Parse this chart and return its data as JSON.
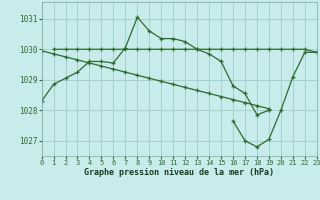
{
  "bg_color": "#c8ecec",
  "grid_color": "#a0cccc",
  "line_color": "#2d6b2d",
  "xlabel": "Graphe pression niveau de la mer (hPa)",
  "xlim": [
    0,
    23
  ],
  "ylim": [
    1026.5,
    1031.55
  ],
  "yticks": [
    1027,
    1028,
    1029,
    1030,
    1031
  ],
  "xticks": [
    0,
    1,
    2,
    3,
    4,
    5,
    6,
    7,
    8,
    9,
    10,
    11,
    12,
    13,
    14,
    15,
    16,
    17,
    18,
    19,
    20,
    21,
    22,
    23
  ],
  "series": [
    {
      "x": [
        0,
        1,
        2,
        3,
        4,
        5,
        6,
        7,
        8,
        9,
        10,
        11,
        12,
        13,
        14,
        15,
        16,
        17,
        18,
        19
      ],
      "y": [
        1028.3,
        1028.85,
        1029.05,
        1029.25,
        1029.6,
        1029.6,
        1029.55,
        1030.05,
        1031.05,
        1030.6,
        1030.35,
        1030.35,
        1030.25,
        1030.0,
        1029.85,
        1029.6,
        1028.8,
        1028.55,
        1027.85,
        1028.0
      ]
    },
    {
      "x": [
        1,
        2,
        3,
        4,
        5,
        6,
        7,
        8,
        9,
        10,
        11,
        12,
        13,
        14,
        15,
        16,
        17,
        18,
        19,
        20,
        21,
        22,
        23
      ],
      "y": [
        1030.0,
        1030.0,
        1030.0,
        1030.0,
        1030.0,
        1030.0,
        1030.0,
        1030.0,
        1030.0,
        1030.0,
        1030.0,
        1030.0,
        1030.0,
        1030.0,
        1030.0,
        1030.0,
        1030.0,
        1030.0,
        1030.0,
        1030.0,
        1030.0,
        1030.0,
        1029.9
      ]
    },
    {
      "x": [
        0,
        1,
        2,
        3,
        4,
        5,
        6,
        7,
        8,
        9,
        10,
        11,
        12,
        13,
        14,
        15,
        16,
        17,
        18,
        19
      ],
      "y": [
        1029.95,
        1029.85,
        1029.75,
        1029.65,
        1029.55,
        1029.45,
        1029.35,
        1029.25,
        1029.15,
        1029.05,
        1028.95,
        1028.85,
        1028.75,
        1028.65,
        1028.55,
        1028.45,
        1028.35,
        1028.25,
        1028.15,
        1028.05
      ]
    },
    {
      "x": [
        16,
        17,
        18,
        19,
        20,
        21,
        22,
        23
      ],
      "y": [
        1027.65,
        1027.0,
        1026.8,
        1027.05,
        1028.0,
        1029.1,
        1029.9,
        1029.9
      ]
    }
  ]
}
